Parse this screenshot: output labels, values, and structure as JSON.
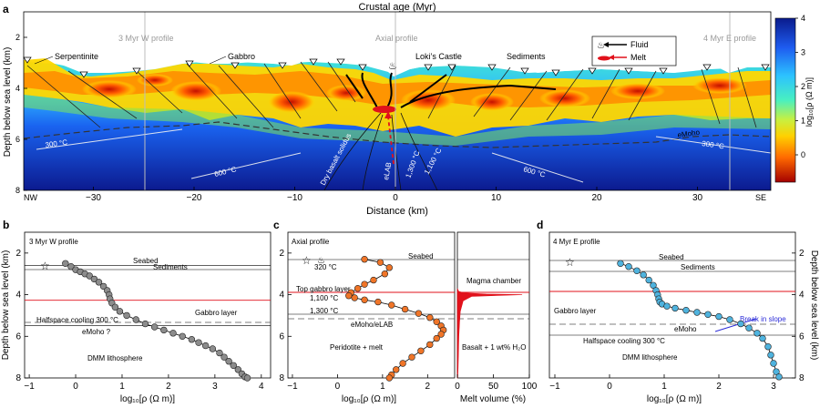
{
  "figure": {
    "panel_a": {
      "letter": "a",
      "top_axis_title": "Crustal age (Myr)",
      "top_ticks": [
        "4",
        "3",
        "2",
        "1",
        "0",
        "1",
        "2",
        "3",
        "4"
      ],
      "ylabel": "Depth below sea level (km)",
      "y_ticks": [
        "2",
        "4",
        "6",
        "8"
      ],
      "x_ticks": [
        "−30",
        "−20",
        "−10",
        "0",
        "10",
        "20",
        "30"
      ],
      "xlabel": "Distance (km)",
      "nw": "NW",
      "se": "SE",
      "profiles": {
        "west": "3 Myr W profile",
        "axial": "Axial profile",
        "east": "4 Myr E profile"
      },
      "labels": {
        "serpentinite": "Serpentinite",
        "gabbro": "Gabbro",
        "lokis_castle": "Loki’s Castle",
        "sediments": "Sediments",
        "iso300_left": "300 °C",
        "iso600_left": "600 °C",
        "dry_basalt_solidus": "Dry basalt solidus",
        "elab": "eLAB",
        "iso1300": "1,300 °C",
        "iso1100": "1,100 °C",
        "iso600_right": "600 °C",
        "emoho": "eMoho",
        "iso300_right": "300 °C"
      },
      "legend": {
        "fluid": "Fluid",
        "melt": "Melt"
      },
      "colorbar": {
        "ticks": [
          "4",
          "3",
          "2",
          "1",
          "0"
        ],
        "label": "log₁₀[ρ (Ω m)]",
        "range": [
          -0.8,
          4
        ]
      }
    },
    "panel_b": {
      "letter": "b",
      "profile": "3 Myr W profile",
      "ylabel": "Depth below sea level (km)",
      "y_ticks": [
        "2",
        "4",
        "6",
        "8"
      ],
      "x_ticks": [
        "−1",
        "0",
        "1",
        "2",
        "3",
        "4"
      ],
      "xlabel": "log₁₀[ρ (Ω m)]",
      "labels": {
        "seabed": "Seabed",
        "sediments": "Sediments",
        "gabbro_layer": "Gabbro layer",
        "halfspace": "Halfspace cooling 300 °C",
        "emoho": "eMoho ?",
        "dmm": "DMM lithosphere"
      }
    },
    "panel_c": {
      "letter": "c",
      "profile": "Axial profile",
      "x_ticks": [
        "−1",
        "0",
        "1",
        "2"
      ],
      "xlabel": "log₁₀[ρ (Ω m)]",
      "labels": {
        "seabed": "Seabed",
        "t320": "320 °C",
        "top_gabbro": "Top gabbro layer",
        "t1100": "1,100 °C",
        "t1300": "1,300 °C",
        "emoho_elab": "eMoho/eLAB",
        "peridotite": "Peridotite + melt"
      },
      "melt": {
        "x_ticks": [
          "0",
          "50",
          "100"
        ],
        "xlabel": "Melt volume (%)",
        "magma_chamber": "Magma chamber",
        "basalt": "Basalt + 1 wt% H₂O"
      }
    },
    "panel_d": {
      "letter": "d",
      "profile": "4 Myr E profile",
      "ylabel": "Depth below sea level (km)",
      "y_ticks": [
        "2",
        "4",
        "6",
        "8"
      ],
      "x_ticks": [
        "−1",
        "0",
        "1",
        "2",
        "3"
      ],
      "xlabel": "log₁₀[ρ (Ω m)]",
      "labels": {
        "seabed": "Seabed",
        "sediments": "Sediments",
        "gabbro_layer": "Gabbro layer",
        "break_in_slope": "Break in slope",
        "emoho": "eMoho",
        "halfspace": "Halfspace cooling 300 °C",
        "dmm": "DMM lithosphere"
      }
    }
  },
  "chart_data": [
    {
      "type": "scatter",
      "title": "3 Myr W profile",
      "xlabel": "log10[rho (Ohm m)]",
      "ylabel": "Depth below sea level (km)",
      "xlim": [
        -1,
        4
      ],
      "ylim": [
        8,
        1
      ],
      "x": [
        -0.22,
        -0.1,
        0.0,
        0.1,
        0.2,
        0.3,
        0.4,
        0.5,
        0.6,
        0.68,
        0.72,
        0.74,
        0.78,
        0.85,
        0.95,
        1.1,
        1.3,
        1.5,
        1.7,
        1.9,
        2.1,
        2.3,
        2.5,
        2.65,
        2.8,
        2.95,
        3.1,
        3.2,
        3.3,
        3.4,
        3.5,
        3.58,
        3.65,
        3.7
      ],
      "y": [
        2.5,
        2.65,
        2.8,
        2.9,
        3.0,
        3.1,
        3.25,
        3.4,
        3.6,
        3.8,
        4.0,
        4.2,
        4.4,
        4.6,
        4.8,
        5.0,
        5.2,
        5.4,
        5.55,
        5.7,
        5.85,
        6.0,
        6.15,
        6.3,
        6.45,
        6.6,
        6.8,
        7.0,
        7.2,
        7.4,
        7.6,
        7.8,
        7.95,
        8.0
      ]
    },
    {
      "type": "scatter",
      "title": "Axial profile",
      "xlabel": "log10[rho (Ohm m)]",
      "ylabel": "Depth below sea level (km)",
      "xlim": [
        -1,
        2.5
      ],
      "ylim": [
        8,
        1
      ],
      "x": [
        0.6,
        0.95,
        1.15,
        1.05,
        0.8,
        0.6,
        0.45,
        0.3,
        0.25,
        0.38,
        0.6,
        0.9,
        1.2,
        1.5,
        1.8,
        2.05,
        2.2,
        2.3,
        2.35,
        2.3,
        2.2,
        2.05,
        1.85,
        1.65,
        1.45,
        1.3,
        1.2,
        1.15
      ],
      "y": [
        2.3,
        2.45,
        2.7,
        3.0,
        3.3,
        3.5,
        3.7,
        3.9,
        4.05,
        4.15,
        4.25,
        4.35,
        4.5,
        4.7,
        4.9,
        5.1,
        5.3,
        5.5,
        5.7,
        5.9,
        6.1,
        6.4,
        6.7,
        7.0,
        7.3,
        7.6,
        7.85,
        8.0
      ]
    },
    {
      "type": "area",
      "title": "Melt volume",
      "xlabel": "Melt volume (%)",
      "xlim": [
        0,
        100
      ],
      "ylim": [
        8,
        1
      ],
      "x": [
        0,
        2,
        10,
        40,
        90,
        60,
        20,
        8,
        4,
        3,
        2,
        1.5,
        1,
        0.5
      ],
      "y": [
        3.7,
        3.85,
        3.92,
        3.97,
        4.0,
        4.03,
        4.08,
        4.3,
        4.8,
        5.3,
        6.0,
        6.8,
        7.5,
        8.0
      ]
    },
    {
      "type": "scatter",
      "title": "4 Myr E profile",
      "xlabel": "log10[rho (Ohm m)]",
      "ylabel": "Depth below sea level (km)",
      "xlim": [
        -1,
        3.4
      ],
      "ylim": [
        8,
        1
      ],
      "x": [
        0.2,
        0.35,
        0.5,
        0.62,
        0.72,
        0.8,
        0.85,
        0.88,
        0.9,
        0.92,
        0.96,
        1.05,
        1.2,
        1.4,
        1.6,
        1.8,
        2.0,
        2.2,
        2.4,
        2.55,
        2.7,
        2.8,
        2.9,
        2.95,
        3.0,
        3.05,
        3.1
      ],
      "y": [
        2.5,
        2.65,
        2.85,
        3.05,
        3.3,
        3.55,
        3.8,
        4.0,
        4.2,
        4.35,
        4.45,
        4.55,
        4.65,
        4.75,
        4.85,
        4.95,
        5.05,
        5.2,
        5.4,
        5.6,
        5.85,
        6.1,
        6.5,
        6.9,
        7.3,
        7.7,
        7.95
      ]
    }
  ]
}
